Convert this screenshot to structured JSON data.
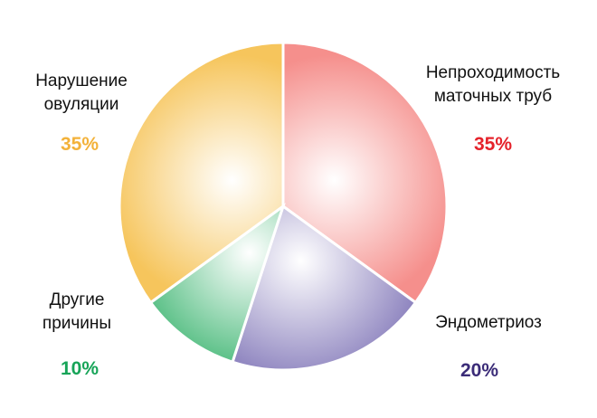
{
  "chart_data": {
    "type": "pie",
    "categories": [
      "Непроходимость\nматочных труб",
      "Эндометриоз",
      "Другие\nпричины",
      "Нарушение\nовуляции"
    ],
    "values": [
      35,
      20,
      10,
      35
    ],
    "value_labels": [
      "35%",
      "20%",
      "10%",
      "35%"
    ],
    "colors": [
      "#f58f8c",
      "#8a80bd",
      "#45b877",
      "#f6c55c"
    ],
    "label_colors": [
      "#e5232b",
      "#3b2c78",
      "#17a458",
      "#f3b23a"
    ]
  }
}
